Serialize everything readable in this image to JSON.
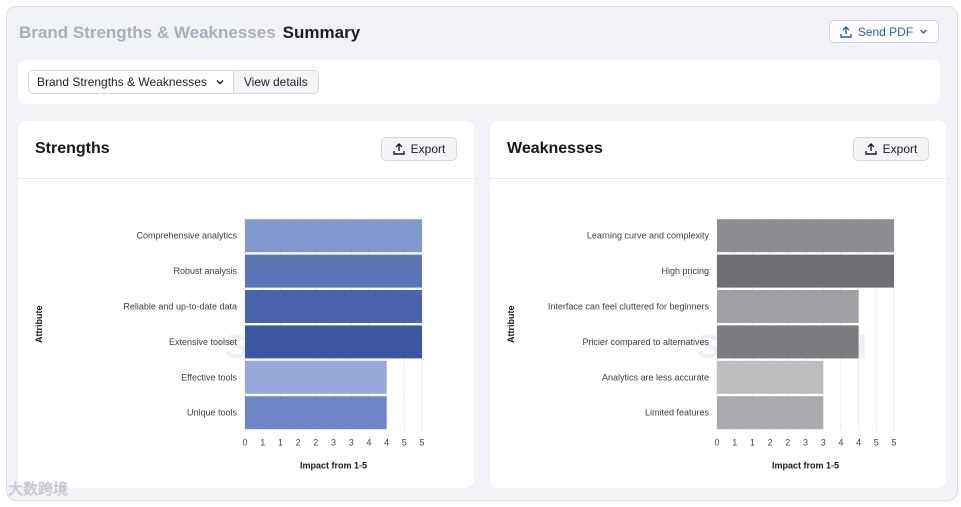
{
  "header": {
    "title_muted": "Brand Strengths & Weaknesses",
    "title_main": "Summary",
    "send_label": "Send PDF"
  },
  "filters": {
    "dropdown_label": "Brand Strengths & Weaknesses",
    "details_label": "View details"
  },
  "footer": {
    "brand_text": "大数跨境"
  },
  "panels": [
    {
      "title": "Strengths",
      "export_label": "Export"
    },
    {
      "title": "Weaknesses",
      "export_label": "Export"
    }
  ],
  "chart_data": [
    {
      "type": "bar",
      "orientation": "horizontal",
      "categories": [
        "Comprehensive analytics",
        "Robust analysis",
        "Reliable and up-to-date data",
        "Extensive toolset",
        "Effective tools",
        "Unique tools"
      ],
      "values": [
        5,
        5,
        5,
        5,
        4,
        4
      ],
      "bar_colors": [
        "#8299cf",
        "#5c75b6",
        "#4a63ad",
        "#3e56a2",
        "#95a8d9",
        "#6e86c3"
      ],
      "xlabel": "Impact from 1-5",
      "ylabel": "Attribute",
      "tick_labels": [
        "0",
        "1",
        "1",
        "2",
        "2",
        "3",
        "3",
        "4",
        "4",
        "5",
        "5"
      ],
      "xlim": [
        0,
        5
      ],
      "grid": true,
      "watermark": "SEMRUSH"
    },
    {
      "type": "bar",
      "orientation": "horizontal",
      "categories": [
        "Learning curve and complexity",
        "High pricing",
        "Interface can feel cluttered for beginners",
        "Pricier compared to alternatives",
        "Analytics are less accurate",
        "Limited features"
      ],
      "values": [
        5,
        5,
        4,
        4,
        3,
        3
      ],
      "bar_colors": [
        "#8c8c91",
        "#6e6e74",
        "#a0a0a4",
        "#7b7b80",
        "#bdbdc0",
        "#aaaaae"
      ],
      "xlabel": "Impact from 1-5",
      "ylabel": "Attribute",
      "tick_labels": [
        "0",
        "1",
        "1",
        "2",
        "2",
        "3",
        "3",
        "4",
        "4",
        "5",
        "5"
      ],
      "xlim": [
        0,
        5
      ],
      "grid": true,
      "watermark": "SEMRUSH"
    }
  ]
}
